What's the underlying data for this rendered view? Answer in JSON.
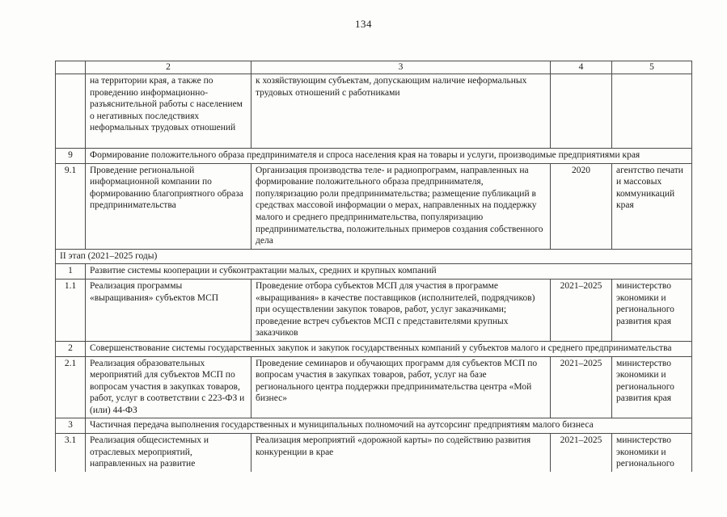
{
  "page": {
    "number": "134"
  },
  "table": {
    "header": {
      "c1": "",
      "c2": "2",
      "c3": "3",
      "c4": "4",
      "c5": "5"
    },
    "rows": [
      {
        "type": "detail",
        "num": "",
        "col2": "на территории края, а также по проведению информационно-разъяснительной работы с населением о негативных последствиях неформальных трудовых отношений",
        "col3": "к хозяйствующим субъектам, допускающим наличие неформальных трудовых отношений с работниками",
        "col4": "",
        "col5": ""
      },
      {
        "type": "section",
        "num": "9",
        "text": "Формирование положительного образа предпринимателя и спроса населения края на товары и услуги, производимые предприятиями края"
      },
      {
        "type": "detail",
        "num": "9.1",
        "col2": "Проведение региональной информационной компании по формированию благоприятного образа предпринимательства",
        "col3": "Организация производства теле- и радиопрограмм, направленных на формирование положительного образа предпринимателя, популяризацию роли предпринимательства; размещение публикаций в средствах массовой информации о мерах, направленных на поддержку малого и среднего предпринимательства, популяризацию предпринимательства, положительных примеров создания собственного дела",
        "col4": "2020",
        "col5": "агентство печати и массовых коммуникаций края"
      },
      {
        "type": "stage",
        "text": "II этап (2021–2025 годы)"
      },
      {
        "type": "section",
        "num": "1",
        "text": "Развитие системы кооперации и субконтрактации малых, средних и крупных компаний"
      },
      {
        "type": "detail",
        "num": "1.1",
        "col2": "Реализация программы «выращивания» субъектов МСП",
        "col3": "Проведение отбора субъектов МСП для участия в программе «выращивания» в качестве поставщиков (исполнителей, подрядчиков) при осуществлении закупок товаров, работ, услуг заказчиками; проведение встреч субъектов МСП с представителями крупных заказчиков",
        "col4": "2021–2025",
        "col5": "министерство экономики и регионального развития края"
      },
      {
        "type": "section",
        "num": "2",
        "text": "Совершенствование системы государственных закупок и закупок государственных компаний у субъектов малого и среднего предпринимательства"
      },
      {
        "type": "detail",
        "num": "2.1",
        "col2": "Реализация образовательных мероприятий для субъектов МСП по вопросам участия в закупках товаров, работ, услуг в соответствии с 223-ФЗ и (или) 44-ФЗ",
        "col3": "Проведение семинаров и обучающих программ для субъектов МСП по вопросам участия в закупках товаров, работ, услуг на базе регионального центра поддержки предпринимательства центра «Мой бизнес»",
        "col4": "2021–2025",
        "col5": "министерство экономики и регионального развития края"
      },
      {
        "type": "section",
        "num": "3",
        "text": "Частичная передача выполнения государственных и муниципальных полномочий на аутсорсинг предприятиям малого бизнеса"
      },
      {
        "type": "detail",
        "num": "3.1",
        "col2": "Реализация общесистемных и отраслевых мероприятий, направленных на развитие",
        "col3": "Реализация мероприятий «дорожной карты» по содействию развития конкуренции в крае",
        "col4": "2021–2025",
        "col5": "министерство экономики и регионального"
      }
    ]
  }
}
